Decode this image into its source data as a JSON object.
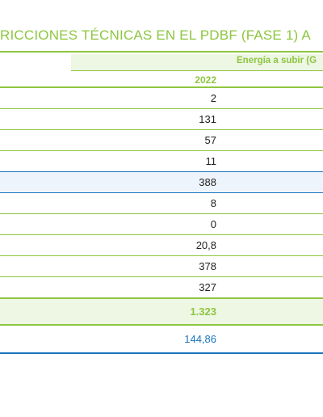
{
  "title": "RICCIONES TÉCNICAS EN EL PDBF (FASE 1) A",
  "column_group": "Energía a subir (G",
  "year": "2022",
  "rows": [
    {
      "value": "2"
    },
    {
      "value": "131"
    },
    {
      "value": "57"
    },
    {
      "value": "11"
    },
    {
      "value": "388"
    },
    {
      "value": "8"
    },
    {
      "value": "0"
    },
    {
      "value": "20,8"
    },
    {
      "value": "378"
    },
    {
      "value": "327"
    },
    {
      "value": "1.323"
    },
    {
      "value": "144,86"
    }
  ],
  "colors": {
    "accent_green": "#8dc63f",
    "accent_blue": "#1a75bc",
    "row_blue_bg": "#eef4fb",
    "row_green_bg": "#eef6e4"
  }
}
